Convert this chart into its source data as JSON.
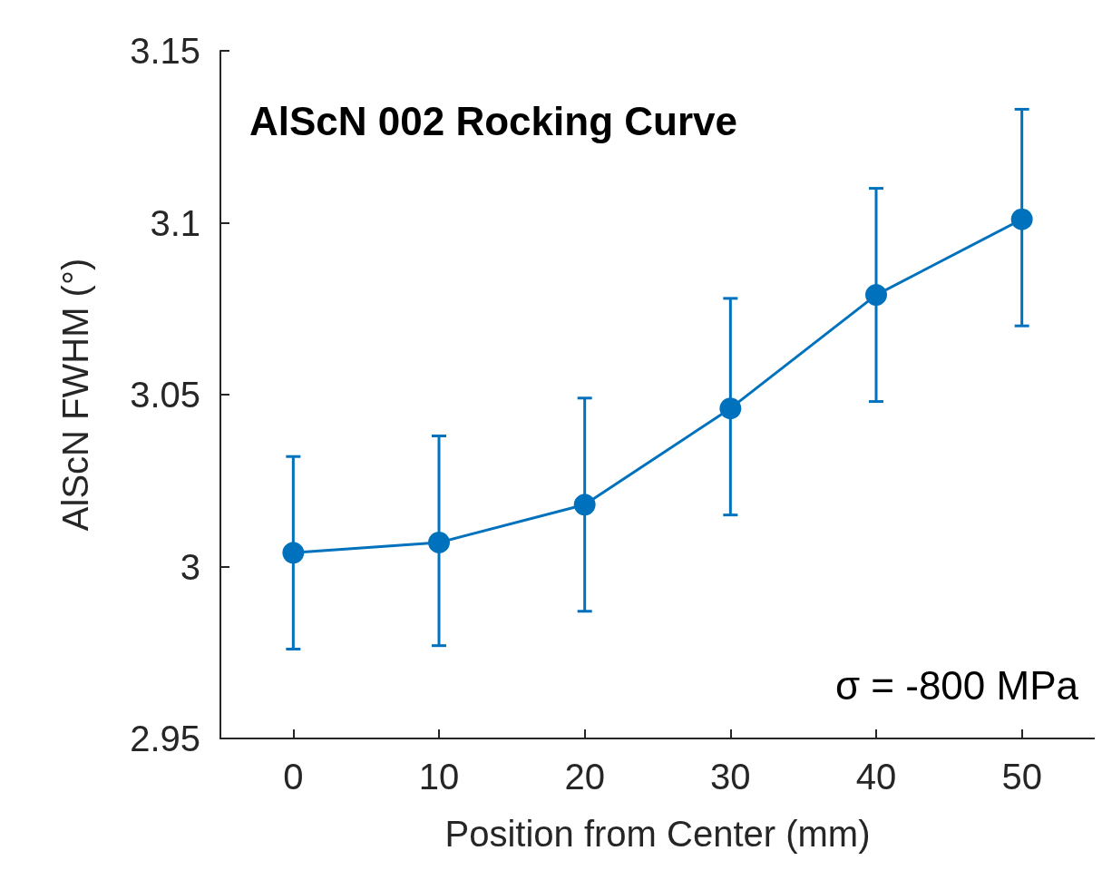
{
  "chart_data": {
    "type": "line",
    "title": "AlScN 002 Rocking Curve",
    "xlabel": "Position from Center (mm)",
    "ylabel": "AlScN FWHM (°)",
    "annotations": [
      "σ = -800 MPa"
    ],
    "x": [
      0,
      10,
      20,
      30,
      40,
      50
    ],
    "series": [
      {
        "color": "#0072bd",
        "values": [
          3.004,
          3.007,
          3.018,
          3.046,
          3.079,
          3.101
        ],
        "errors": [
          [
            2.976,
            3.032
          ],
          [
            2.977,
            3.038
          ],
          [
            2.987,
            3.049
          ],
          [
            3.015,
            3.078
          ],
          [
            3.048,
            3.11
          ],
          [
            3.07,
            3.133
          ]
        ]
      }
    ],
    "xlim": [
      -5,
      55
    ],
    "xticks": [
      0,
      10,
      20,
      30,
      40,
      50
    ],
    "ylim": [
      2.95,
      3.15
    ],
    "yticks": [
      2.95,
      3,
      3.05,
      3.1,
      3.15
    ],
    "grid": false,
    "marker": "circle",
    "line_style": "solid"
  }
}
